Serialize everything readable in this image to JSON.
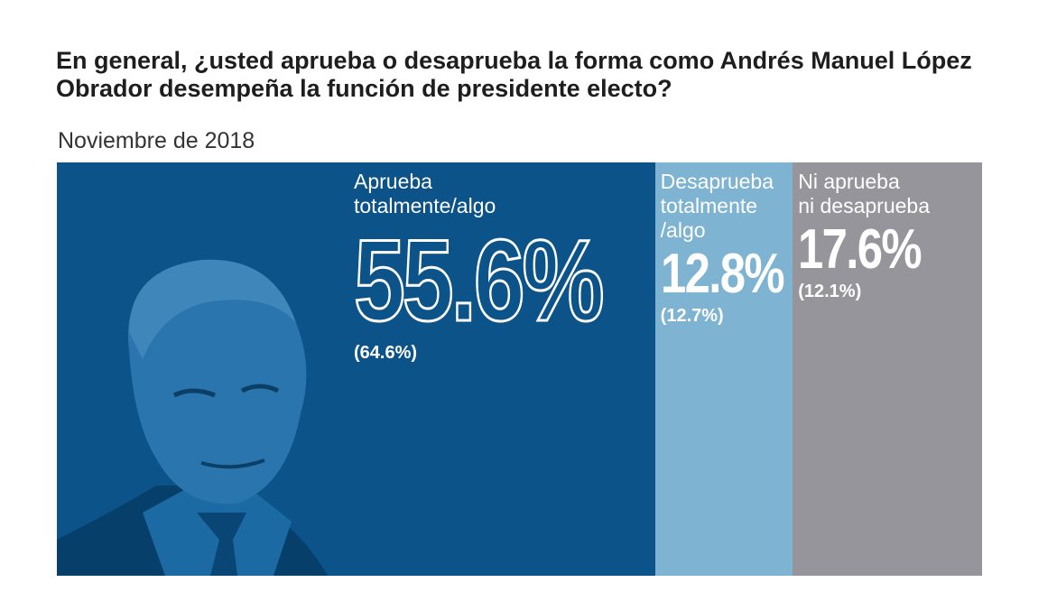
{
  "chart_data": {
    "type": "proportion_bar",
    "title": "En general, ¿usted aprueba o desaprueba la forma como Andrés Manuel López Obrador desempeña la función de presidente electo?",
    "subtitle": "Noviembre de 2018",
    "categories": [
      "Aprueba\ntotalmente/algo",
      "Desaprueba\ntotalmente\n/algo",
      "Ni aprueba\nni desaprueba"
    ],
    "values": [
      55.6,
      12.8,
      17.6
    ],
    "value_labels": [
      "55.6%",
      "12.8%",
      "17.6%"
    ],
    "previous_values": [
      64.6,
      12.7,
      12.1
    ],
    "previous_labels": [
      "(64.6%)",
      "(12.7%)",
      "(12.1%)"
    ],
    "colors": [
      "#0b5389",
      "#7eb3d1",
      "#96959c"
    ]
  }
}
